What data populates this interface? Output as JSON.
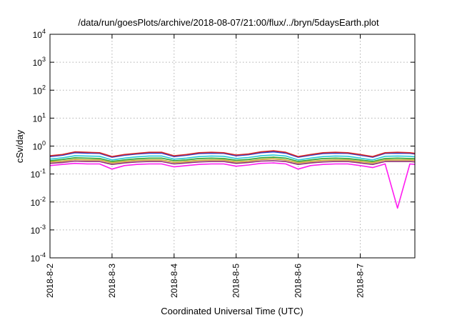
{
  "chart_data": {
    "type": "line",
    "title": "/data/run/goesPlots/archive/2018-08-07/21:00/flux/../bryn/5daysEarth.plot",
    "xlabel": "Coordinated Universal Time (UTC)",
    "ylabel": "cSv/day",
    "yscale": "log",
    "ylim": [
      0.0001,
      10000
    ],
    "xlim": [
      0,
      5.88
    ],
    "grid": true,
    "legend": "none",
    "x_ticks": [
      {
        "label": "2018-8-2",
        "value": 0
      },
      {
        "label": "2018-8-3",
        "value": 1
      },
      {
        "label": "2018-8-4",
        "value": 2
      },
      {
        "label": "2018-8-5",
        "value": 3
      },
      {
        "label": "2018-8-6",
        "value": 4
      },
      {
        "label": "2018-8-7",
        "value": 5
      }
    ],
    "y_ticks": [
      {
        "base": "10",
        "exp": "4",
        "value": 10000
      },
      {
        "base": "10",
        "exp": "3",
        "value": 1000
      },
      {
        "base": "10",
        "exp": "2",
        "value": 100
      },
      {
        "base": "10",
        "exp": "1",
        "value": 10
      },
      {
        "base": "10",
        "exp": "0",
        "value": 1
      },
      {
        "base": "10",
        "exp": "-1",
        "value": 0.1
      },
      {
        "base": "10",
        "exp": "-2",
        "value": 0.01
      },
      {
        "base": "10",
        "exp": "-3",
        "value": 0.001
      },
      {
        "base": "10",
        "exp": "-4",
        "value": 0.0001
      }
    ],
    "x": [
      0,
      0.2,
      0.4,
      0.6,
      0.8,
      1.0,
      1.2,
      1.4,
      1.6,
      1.8,
      2.0,
      2.2,
      2.4,
      2.6,
      2.8,
      3.0,
      3.2,
      3.4,
      3.6,
      3.8,
      4.0,
      4.2,
      4.4,
      4.6,
      4.8,
      5.0,
      5.2,
      5.4,
      5.6,
      5.8,
      5.88
    ],
    "series": [
      {
        "color": "#d62728",
        "values": [
          0.45,
          0.5,
          0.62,
          0.6,
          0.58,
          0.42,
          0.5,
          0.55,
          0.6,
          0.6,
          0.45,
          0.5,
          0.58,
          0.6,
          0.58,
          0.48,
          0.52,
          0.62,
          0.68,
          0.6,
          0.42,
          0.5,
          0.58,
          0.6,
          0.58,
          0.5,
          0.42,
          0.58,
          0.6,
          0.58,
          0.55
        ]
      },
      {
        "color": "#2a3fd1",
        "values": [
          0.42,
          0.47,
          0.58,
          0.56,
          0.55,
          0.4,
          0.47,
          0.52,
          0.56,
          0.56,
          0.42,
          0.47,
          0.54,
          0.56,
          0.55,
          0.45,
          0.49,
          0.58,
          0.62,
          0.56,
          0.4,
          0.47,
          0.54,
          0.56,
          0.55,
          0.47,
          0.4,
          0.55,
          0.56,
          0.55,
          0.52
        ]
      },
      {
        "color": "#29c7d6",
        "values": [
          0.34,
          0.38,
          0.45,
          0.44,
          0.43,
          0.32,
          0.37,
          0.41,
          0.44,
          0.44,
          0.34,
          0.37,
          0.42,
          0.44,
          0.43,
          0.36,
          0.39,
          0.45,
          0.48,
          0.44,
          0.32,
          0.37,
          0.42,
          0.44,
          0.43,
          0.37,
          0.32,
          0.43,
          0.44,
          0.43,
          0.41
        ]
      },
      {
        "color": "#2ca02c",
        "values": [
          0.3,
          0.33,
          0.38,
          0.37,
          0.36,
          0.28,
          0.32,
          0.35,
          0.37,
          0.37,
          0.3,
          0.32,
          0.36,
          0.37,
          0.36,
          0.31,
          0.33,
          0.38,
          0.4,
          0.37,
          0.28,
          0.32,
          0.36,
          0.37,
          0.36,
          0.32,
          0.28,
          0.36,
          0.37,
          0.36,
          0.35
        ]
      },
      {
        "color": "#c9a227",
        "values": [
          0.27,
          0.29,
          0.33,
          0.32,
          0.32,
          0.25,
          0.28,
          0.31,
          0.32,
          0.32,
          0.26,
          0.28,
          0.31,
          0.32,
          0.32,
          0.27,
          0.29,
          0.33,
          0.35,
          0.32,
          0.25,
          0.28,
          0.31,
          0.32,
          0.32,
          0.28,
          0.25,
          0.32,
          0.32,
          0.32,
          0.31
        ]
      },
      {
        "color": "#8c2d6e",
        "values": [
          0.24,
          0.26,
          0.29,
          0.28,
          0.28,
          0.22,
          0.25,
          0.27,
          0.28,
          0.28,
          0.23,
          0.25,
          0.27,
          0.28,
          0.28,
          0.24,
          0.26,
          0.29,
          0.3,
          0.28,
          0.22,
          0.25,
          0.27,
          0.28,
          0.28,
          0.25,
          0.22,
          0.28,
          0.28,
          0.28,
          0.27
        ]
      },
      {
        "color": "#ff1cf0",
        "values": [
          0.2,
          0.22,
          0.24,
          0.23,
          0.23,
          0.15,
          0.2,
          0.22,
          0.23,
          0.23,
          0.18,
          0.2,
          0.22,
          0.23,
          0.23,
          0.19,
          0.21,
          0.24,
          0.25,
          0.23,
          0.15,
          0.2,
          0.22,
          0.23,
          0.23,
          0.2,
          0.17,
          0.23,
          0.006,
          0.23,
          0.22
        ]
      }
    ]
  }
}
